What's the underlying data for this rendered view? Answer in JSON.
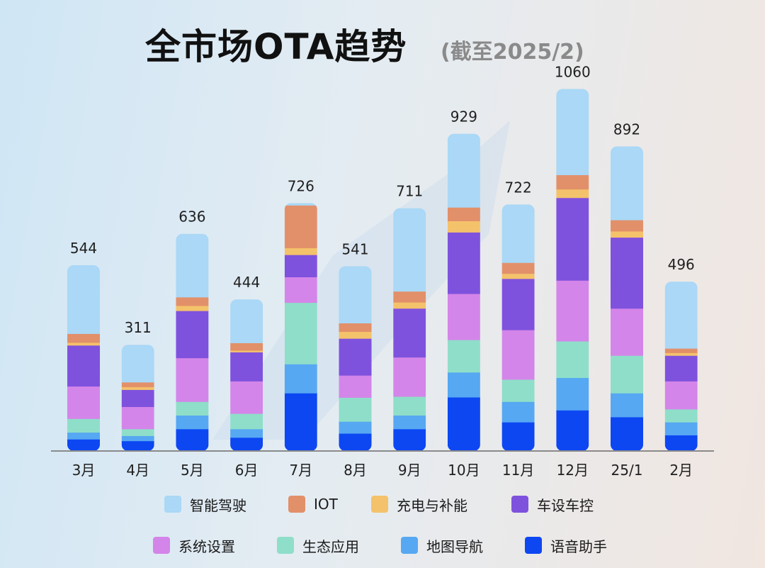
{
  "title": "全市场OTA趋势",
  "subtitle": "(截至2025/2)",
  "chart_data": {
    "type": "bar",
    "stacked": true,
    "categories": [
      "3月",
      "4月",
      "5月",
      "6月",
      "7月",
      "8月",
      "9月",
      "10月",
      "11月",
      "12月",
      "25/1",
      "2月"
    ],
    "totals": [
      544,
      311,
      636,
      444,
      726,
      541,
      711,
      929,
      722,
      1060,
      892,
      496
    ],
    "series": [
      {
        "name": "语音助手",
        "color": "#0d47f2",
        "values": [
          35,
          30,
          65,
          40,
          170,
          52,
          65,
          158,
          85,
          120,
          100,
          47
        ]
      },
      {
        "name": "地图导航",
        "color": "#56a8f2",
        "values": [
          20,
          15,
          40,
          25,
          85,
          35,
          40,
          73,
          60,
          95,
          70,
          38
        ]
      },
      {
        "name": "生态应用",
        "color": "#8fdec9",
        "values": [
          40,
          20,
          40,
          45,
          180,
          70,
          55,
          95,
          65,
          107,
          110,
          38
        ]
      },
      {
        "name": "系统设置",
        "color": "#d485e9",
        "values": [
          95,
          65,
          128,
          95,
          75,
          65,
          115,
          135,
          145,
          178,
          138,
          82
        ]
      },
      {
        "name": "车设车控",
        "color": "#7f52dd",
        "values": [
          120,
          50,
          138,
          85,
          65,
          108,
          143,
          180,
          150,
          242,
          208,
          75
        ]
      },
      {
        "name": "充电与补能",
        "color": "#f4c26b",
        "values": [
          8,
          8,
          15,
          5,
          20,
          20,
          18,
          33,
          15,
          25,
          18,
          8
        ]
      },
      {
        "name": "IOT",
        "color": "#e2906a",
        "values": [
          26,
          14,
          25,
          22,
          125,
          25,
          32,
          40,
          32,
          42,
          33,
          13
        ]
      },
      {
        "name": "智能驾驶",
        "color": "#aad8f6",
        "values": [
          200,
          109,
          185,
          127,
          6,
          166,
          243,
          215,
          170,
          251,
          215,
          195
        ]
      }
    ],
    "legend_order": [
      "智能驾驶",
      "IOT",
      "充电与补能",
      "车设车控",
      "系统设置",
      "生态应用",
      "地图导航",
      "语音助手"
    ],
    "legend_position": "bottom",
    "ylim": [
      0,
      1100
    ],
    "grid": false
  }
}
